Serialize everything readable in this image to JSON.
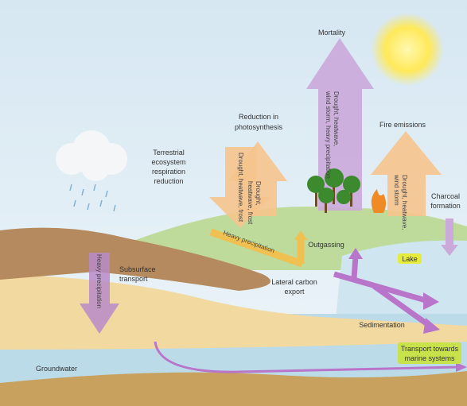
{
  "labels": {
    "mortality": "Mortality",
    "photosynthesis": [
      "Reduction in",
      "photosynthesis"
    ],
    "respiration": [
      "Terrestrial",
      "ecosystem",
      "respiration",
      "reduction"
    ],
    "fire": "Fire emissions",
    "charcoal": [
      "Charcoal",
      "formation"
    ],
    "outgassing": "Outgassing",
    "lake": "Lake",
    "subsurface": [
      "Subsurface",
      "transport"
    ],
    "lateral": [
      "Lateral carbon",
      "export"
    ],
    "sedimentation": "Sedimentation",
    "marine": [
      "Transport towards",
      "marine systems"
    ],
    "groundwater": "Groundwater"
  },
  "drivers": {
    "respiration": "Drought, heatwave, frost",
    "photosynthesis": [
      "Drought,",
      "heatwave, frost"
    ],
    "mortality": [
      "Drought, heatwave,",
      "wind storm, heavy precipitation"
    ],
    "fire": [
      "Drought, heatwave,",
      "wind storm"
    ],
    "slope": "Heavy precipitation",
    "subsurface": "Heavy precipitation"
  }
}
